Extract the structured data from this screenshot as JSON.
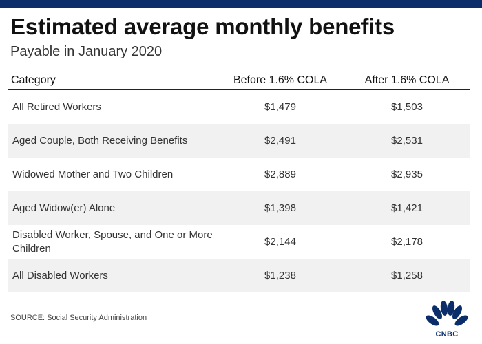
{
  "title": "Estimated average monthly benefits",
  "subtitle": "Payable in January 2020",
  "source": "SOURCE: Social Security Administration",
  "brand_color": "#0b2e6b",
  "logo_text": "CNBC",
  "chart_data": {
    "type": "table",
    "columns": [
      "Category",
      "Before 1.6% COLA",
      "After 1.6% COLA"
    ],
    "rows": [
      {
        "category": "All Retired Workers",
        "before": "$1,479",
        "after": "$1,503"
      },
      {
        "category": "Aged Couple, Both Receiving Benefits",
        "before": "$2,491",
        "after": "$2,531"
      },
      {
        "category": "Widowed Mother and Two Children",
        "before": "$2,889",
        "after": "$2,935"
      },
      {
        "category": "Aged Widow(er) Alone",
        "before": "$1,398",
        "after": "$1,421"
      },
      {
        "category": "Disabled Worker, Spouse, and One or More Children",
        "before": "$2,144",
        "after": "$2,178"
      },
      {
        "category": "All Disabled Workers",
        "before": "$1,238",
        "after": "$1,258"
      }
    ]
  }
}
